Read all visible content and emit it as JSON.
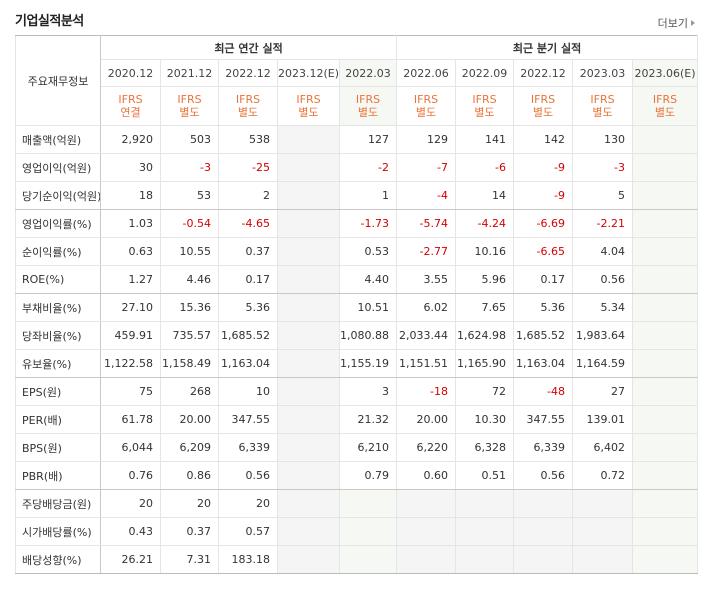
{
  "header": {
    "title": "기업실적분석",
    "more": "더보기"
  },
  "table": {
    "corner": "주요재무정보",
    "groups": [
      "최근 연간 실적",
      "최근 분기 실적"
    ],
    "periods": [
      "2020.12",
      "2021.12",
      "2022.12",
      "2023.12(E)",
      "2022.03",
      "2022.06",
      "2022.09",
      "2022.12",
      "2023.03",
      "2023.06(E)"
    ],
    "ifrs": [
      [
        "IFRS",
        "연결"
      ],
      [
        "IFRS",
        "별도"
      ],
      [
        "IFRS",
        "별도"
      ],
      [
        "IFRS",
        "별도"
      ],
      [
        "IFRS",
        "별도"
      ],
      [
        "IFRS",
        "별도"
      ],
      [
        "IFRS",
        "별도"
      ],
      [
        "IFRS",
        "별도"
      ],
      [
        "IFRS",
        "별도"
      ],
      [
        "IFRS",
        "별도"
      ]
    ],
    "rows": [
      {
        "label": "매출액(억원)",
        "cells": [
          "2,920",
          "503",
          "538",
          null,
          "127",
          "129",
          "141",
          "142",
          "130",
          null
        ]
      },
      {
        "label": "영업이익(억원)",
        "cells": [
          "30",
          "-3",
          "-25",
          null,
          "-2",
          "-7",
          "-6",
          "-9",
          "-3",
          null
        ]
      },
      {
        "label": "당기순이익(억원)",
        "cells": [
          "18",
          "53",
          "2",
          null,
          "1",
          "-4",
          "14",
          "-9",
          "5",
          null
        ]
      },
      {
        "label": "영업이익률(%)",
        "cells": [
          "1.03",
          "-0.54",
          "-4.65",
          null,
          "-1.73",
          "-5.74",
          "-4.24",
          "-6.69",
          "-2.21",
          null
        ]
      },
      {
        "label": "순이익률(%)",
        "cells": [
          "0.63",
          "10.55",
          "0.37",
          null,
          "0.53",
          "-2.77",
          "10.16",
          "-6.65",
          "4.04",
          null
        ]
      },
      {
        "label": "ROE(%)",
        "cells": [
          "1.27",
          "4.46",
          "0.17",
          null,
          "4.40",
          "3.55",
          "5.96",
          "0.17",
          "0.56",
          null
        ]
      },
      {
        "label": "부채비율(%)",
        "cells": [
          "27.10",
          "15.36",
          "5.36",
          null,
          "10.51",
          "6.02",
          "7.65",
          "5.36",
          "5.34",
          null
        ]
      },
      {
        "label": "당좌비율(%)",
        "cells": [
          "459.91",
          "735.57",
          "1,685.52",
          null,
          "1,080.88",
          "2,033.44",
          "1,624.98",
          "1,685.52",
          "1,983.64",
          null
        ]
      },
      {
        "label": "유보율(%)",
        "cells": [
          "1,122.58",
          "1,158.49",
          "1,163.04",
          null,
          "1,155.19",
          "1,151.51",
          "1,165.90",
          "1,163.04",
          "1,164.59",
          null
        ]
      },
      {
        "label": "EPS(원)",
        "cells": [
          "75",
          "268",
          "10",
          null,
          "3",
          "-18",
          "72",
          "-48",
          "27",
          null
        ]
      },
      {
        "label": "PER(배)",
        "cells": [
          "61.78",
          "20.00",
          "347.55",
          null,
          "21.32",
          "20.00",
          "10.30",
          "347.55",
          "139.01",
          null
        ]
      },
      {
        "label": "BPS(원)",
        "cells": [
          "6,044",
          "6,209",
          "6,339",
          null,
          "6,210",
          "6,220",
          "6,328",
          "6,339",
          "6,402",
          null
        ]
      },
      {
        "label": "PBR(배)",
        "cells": [
          "0.76",
          "0.86",
          "0.56",
          null,
          "0.79",
          "0.60",
          "0.51",
          "0.56",
          "0.72",
          null
        ]
      },
      {
        "label": "주당배당금(원)",
        "cells": [
          "20",
          "20",
          "20",
          null,
          null,
          null,
          null,
          null,
          null,
          null
        ]
      },
      {
        "label": "시가배당률(%)",
        "cells": [
          "0.43",
          "0.37",
          "0.57",
          null,
          null,
          null,
          null,
          null,
          null,
          null
        ]
      },
      {
        "label": "배당성향(%)",
        "cells": [
          "26.21",
          "7.31",
          "183.18",
          null,
          null,
          null,
          null,
          null,
          null,
          null
        ]
      }
    ]
  }
}
